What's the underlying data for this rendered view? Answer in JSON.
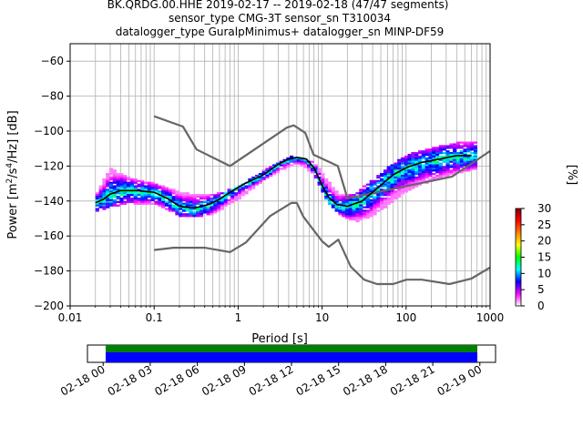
{
  "chart_data": [
    {
      "type": "heatmap",
      "title_lines": [
        "BK.QRDG.00.HHE   2019-02-17 -- 2019-02-18  (47/47 segments)",
        "sensor_type CMG-3T sensor_sn T310034",
        "datalogger_type GuralpMinimus+ datalogger_sn MINP-DF59"
      ],
      "xlabel": "Period [s]",
      "xscale": "log",
      "xlim": [
        0.01,
        1000
      ],
      "x_tick_values": [
        0.01,
        0.1,
        1,
        10,
        100,
        1000
      ],
      "x_tick_labels": [
        "0.01",
        "0.1",
        "1",
        "10",
        "100",
        "1000"
      ],
      "ylabel_parts": [
        "Power [m",
        "2",
        "/s",
        "4",
        "/Hz] [dB]"
      ],
      "ylim": [
        -200,
        -50
      ],
      "y_tick_values": [
        -60,
        -80,
        -100,
        -120,
        -140,
        -160,
        -180,
        -200
      ],
      "y_tick_labels": [
        "−60",
        "−80",
        "−100",
        "−120",
        "−140",
        "−160",
        "−180",
        "−200"
      ],
      "grid": true,
      "colorbar": {
        "label": "[%]",
        "range": [
          0,
          30
        ],
        "tick_values": [
          0,
          5,
          10,
          15,
          20,
          25,
          30
        ],
        "tick_labels": [
          "0",
          "5",
          "10",
          "15",
          "20",
          "25",
          "30"
        ],
        "colormap": [
          "#ffffff",
          "#ff00ff",
          "#0000ff",
          "#00ffff",
          "#00ff00",
          "#ffff00",
          "#ff8000",
          "#ff0000",
          "#800000"
        ]
      },
      "series": [
        {
          "role": "noise-model-upper",
          "color": "#666666",
          "points": [
            [
              0.1,
              -91.5
            ],
            [
              0.22,
              -97.4
            ],
            [
              0.32,
              -110.5
            ],
            [
              0.8,
              -120.0
            ],
            [
              3.8,
              -98.0
            ],
            [
              4.6,
              -96.7
            ],
            [
              6.3,
              -101.0
            ],
            [
              7.9,
              -113.5
            ],
            [
              15.4,
              -120.0
            ],
            [
              20,
              -138.5
            ],
            [
              354.8,
              -126.0
            ],
            [
              1000,
              -111.4
            ]
          ]
        },
        {
          "role": "noise-model-lower",
          "color": "#666666",
          "points": [
            [
              0.1,
              -168.0
            ],
            [
              0.17,
              -166.7
            ],
            [
              0.4,
              -166.7
            ],
            [
              0.8,
              -169.2
            ],
            [
              1.24,
              -163.7
            ],
            [
              2.4,
              -148.6
            ],
            [
              4.3,
              -141.1
            ],
            [
              5.0,
              -141.1
            ],
            [
              6.0,
              -149.0
            ],
            [
              10.0,
              -163.0
            ],
            [
              12.0,
              -166.2
            ],
            [
              15.6,
              -162.1
            ],
            [
              21.9,
              -177.5
            ],
            [
              31.6,
              -185.0
            ],
            [
              45,
              -187.5
            ],
            [
              70,
              -187.5
            ],
            [
              101,
              -185.0
            ],
            [
              154,
              -185.0
            ],
            [
              328,
              -187.5
            ],
            [
              600,
              -184.4
            ],
            [
              1000,
              -178.0
            ]
          ]
        },
        {
          "role": "mean-psd",
          "color": "#000000",
          "points": [
            [
              0.02,
              -141
            ],
            [
              0.025,
              -139
            ],
            [
              0.03,
              -136
            ],
            [
              0.04,
              -134
            ],
            [
              0.06,
              -134
            ],
            [
              0.1,
              -135
            ],
            [
              0.15,
              -139
            ],
            [
              0.2,
              -143
            ],
            [
              0.3,
              -144
            ],
            [
              0.45,
              -142
            ],
            [
              0.6,
              -139
            ],
            [
              0.8,
              -135
            ],
            [
              1.2,
              -130
            ],
            [
              2,
              -125
            ],
            [
              3,
              -119
            ],
            [
              4,
              -116
            ],
            [
              5,
              -115
            ],
            [
              6.5,
              -116
            ],
            [
              8,
              -121
            ],
            [
              10,
              -131
            ],
            [
              12,
              -138
            ],
            [
              15,
              -142
            ],
            [
              20,
              -143
            ],
            [
              30,
              -140
            ],
            [
              50,
              -131
            ],
            [
              70,
              -125
            ],
            [
              100,
              -121
            ],
            [
              150,
              -118
            ],
            [
              250,
              -116
            ],
            [
              400,
              -114
            ],
            [
              600,
              -114
            ]
          ]
        }
      ],
      "psd_density_band": {
        "x": [
          0.02,
          0.03,
          0.05,
          0.1,
          0.2,
          0.3,
          0.5,
          1,
          2,
          4,
          5,
          8,
          12,
          16,
          25,
          40,
          70,
          100,
          200,
          400,
          700
        ],
        "y_low": [
          -146,
          -143,
          -141,
          -141,
          -148,
          -149,
          -147,
          -139,
          -128,
          -120,
          -118,
          -124,
          -141,
          -147,
          -152,
          -148,
          -140,
          -134,
          -128,
          -124,
          -121
        ],
        "y_high": [
          -136,
          -120,
          -126,
          -129,
          -134,
          -135,
          -136,
          -131,
          -122,
          -114,
          -114,
          -117,
          -128,
          -136,
          -135,
          -127,
          -118,
          -113,
          -109,
          -106,
          -105
        ]
      }
    },
    {
      "type": "bar",
      "role": "data-availability",
      "xlim": [
        "2019-02-17 23:00",
        "2019-02-19 01:00"
      ],
      "x_tick_labels": [
        "02-18 00",
        "02-18 03",
        "02-18 06",
        "02-18 09",
        "02-18 12",
        "02-18 15",
        "02-18 18",
        "02-18 21",
        "02-19 00"
      ],
      "coverage": [
        "2019-02-18 00:00",
        "2019-02-19 00:00"
      ],
      "colors": {
        "available": "#008000",
        "used": "#0000ff"
      }
    }
  ]
}
